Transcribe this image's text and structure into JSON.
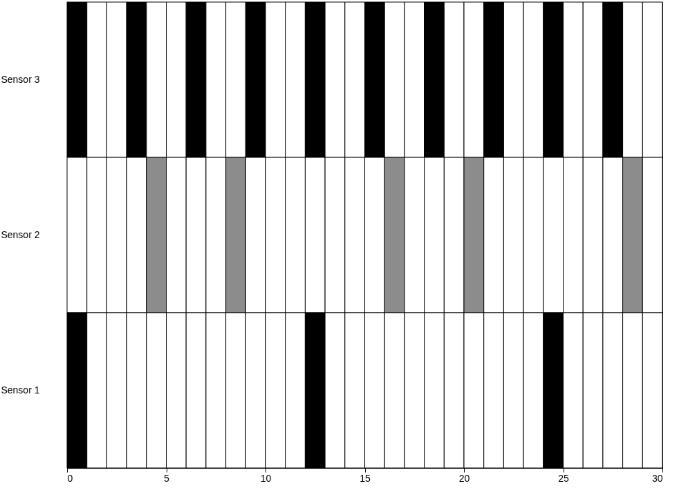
{
  "chart_data": {
    "type": "bar",
    "orientation": "horizontal",
    "stacked": true,
    "categories": [
      "Sensor 3",
      "Sensor 2",
      "Sensor 1"
    ],
    "xlim": [
      0,
      30
    ],
    "xticks": [
      0,
      5,
      10,
      15,
      20,
      25,
      30
    ],
    "grid": false,
    "series": [
      {
        "values": [
          1,
          1,
          1
        ],
        "colors": [
          "#000000",
          "#ffffff",
          "#000000"
        ]
      },
      {
        "values": [
          1,
          1,
          1
        ],
        "colors": [
          "#ffffff",
          "#ffffff",
          "#ffffff"
        ]
      },
      {
        "values": [
          1,
          1,
          1
        ],
        "colors": [
          "#ffffff",
          "#ffffff",
          "#ffffff"
        ]
      },
      {
        "values": [
          1,
          1,
          1
        ],
        "colors": [
          "#000000",
          "#ffffff",
          "#ffffff"
        ]
      },
      {
        "values": [
          1,
          1,
          1
        ],
        "colors": [
          "#ffffff",
          "#8c8c8c",
          "#ffffff"
        ]
      },
      {
        "values": [
          1,
          1,
          1
        ],
        "colors": [
          "#ffffff",
          "#ffffff",
          "#ffffff"
        ]
      },
      {
        "values": [
          1,
          1,
          1
        ],
        "colors": [
          "#000000",
          "#ffffff",
          "#ffffff"
        ]
      },
      {
        "values": [
          1,
          1,
          1
        ],
        "colors": [
          "#ffffff",
          "#ffffff",
          "#ffffff"
        ]
      },
      {
        "values": [
          1,
          1,
          1
        ],
        "colors": [
          "#ffffff",
          "#8c8c8c",
          "#ffffff"
        ]
      },
      {
        "values": [
          1,
          1,
          1
        ],
        "colors": [
          "#000000",
          "#ffffff",
          "#ffffff"
        ]
      },
      {
        "values": [
          1,
          1,
          1
        ],
        "colors": [
          "#ffffff",
          "#ffffff",
          "#ffffff"
        ]
      },
      {
        "values": [
          1,
          1,
          1
        ],
        "colors": [
          "#ffffff",
          "#ffffff",
          "#ffffff"
        ]
      },
      {
        "values": [
          1,
          1,
          1
        ],
        "colors": [
          "#000000",
          "#ffffff",
          "#000000"
        ]
      },
      {
        "values": [
          1,
          1,
          1
        ],
        "colors": [
          "#ffffff",
          "#ffffff",
          "#ffffff"
        ]
      },
      {
        "values": [
          1,
          1,
          1
        ],
        "colors": [
          "#ffffff",
          "#ffffff",
          "#ffffff"
        ]
      },
      {
        "values": [
          1,
          1,
          1
        ],
        "colors": [
          "#000000",
          "#ffffff",
          "#ffffff"
        ]
      },
      {
        "values": [
          1,
          1,
          1
        ],
        "colors": [
          "#ffffff",
          "#8c8c8c",
          "#ffffff"
        ]
      },
      {
        "values": [
          1,
          1,
          1
        ],
        "colors": [
          "#ffffff",
          "#ffffff",
          "#ffffff"
        ]
      },
      {
        "values": [
          1,
          1,
          1
        ],
        "colors": [
          "#000000",
          "#ffffff",
          "#ffffff"
        ]
      },
      {
        "values": [
          1,
          1,
          1
        ],
        "colors": [
          "#ffffff",
          "#ffffff",
          "#ffffff"
        ]
      },
      {
        "values": [
          1,
          1,
          1
        ],
        "colors": [
          "#ffffff",
          "#8c8c8c",
          "#ffffff"
        ]
      },
      {
        "values": [
          1,
          1,
          1
        ],
        "colors": [
          "#000000",
          "#ffffff",
          "#ffffff"
        ]
      },
      {
        "values": [
          1,
          1,
          1
        ],
        "colors": [
          "#ffffff",
          "#ffffff",
          "#ffffff"
        ]
      },
      {
        "values": [
          1,
          1,
          1
        ],
        "colors": [
          "#ffffff",
          "#ffffff",
          "#ffffff"
        ]
      },
      {
        "values": [
          1,
          1,
          1
        ],
        "colors": [
          "#000000",
          "#ffffff",
          "#000000"
        ]
      },
      {
        "values": [
          1,
          1,
          1
        ],
        "colors": [
          "#ffffff",
          "#ffffff",
          "#ffffff"
        ]
      },
      {
        "values": [
          1,
          1,
          1
        ],
        "colors": [
          "#ffffff",
          "#ffffff",
          "#ffffff"
        ]
      },
      {
        "values": [
          1,
          1,
          1
        ],
        "colors": [
          "#000000",
          "#ffffff",
          "#ffffff"
        ]
      },
      {
        "values": [
          1,
          1,
          1
        ],
        "colors": [
          "#ffffff",
          "#8c8c8c",
          "#ffffff"
        ]
      },
      {
        "values": [
          1,
          1,
          1
        ],
        "colors": [
          "#ffffff",
          "#ffffff",
          "#ffffff"
        ]
      }
    ]
  }
}
